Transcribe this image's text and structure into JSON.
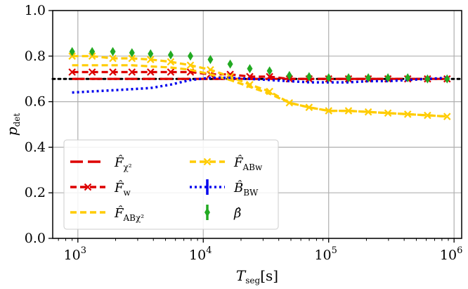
{
  "chart_data": {
    "type": "line",
    "xscale": "log",
    "xlim": [
      630,
      1150000
    ],
    "ylim": [
      0.0,
      1.0
    ],
    "xlabel": "T_seg[s]",
    "ylabel": "p_det",
    "x_ticks": [
      {
        "value": 1000,
        "base": "10",
        "exp": "3"
      },
      {
        "value": 10000,
        "base": "10",
        "exp": "4"
      },
      {
        "value": 100000,
        "base": "10",
        "exp": "5"
      },
      {
        "value": 1000000,
        "base": "10",
        "exp": "6"
      }
    ],
    "y_ticks": [
      {
        "value": 0.0,
        "label": "0.0"
      },
      {
        "value": 0.2,
        "label": "0.2"
      },
      {
        "value": 0.4,
        "label": "0.4"
      },
      {
        "value": 0.6,
        "label": "0.6"
      },
      {
        "value": 0.8,
        "label": "0.8"
      },
      {
        "value": 1.0,
        "label": "1.0"
      }
    ],
    "grid": true,
    "legend_position": "lower-left",
    "reference_line": {
      "y": 0.7,
      "style": "dotted",
      "color": "#000000"
    },
    "x": [
      900,
      1300,
      1900,
      2700,
      3800,
      5500,
      7900,
      11400,
      16400,
      23500,
      33800,
      48600,
      69800,
      100000,
      144000,
      207000,
      297000,
      427000,
      614000,
      880000
    ],
    "series": [
      {
        "name": "F_chi2",
        "legend": {
          "glyph": "F",
          "sub": "χ²"
        },
        "color": "#dd0000",
        "dash": "18,7",
        "marker": "none",
        "values": [
          0.7,
          0.7,
          0.7,
          0.7,
          0.7,
          0.7,
          0.7,
          0.7,
          0.7,
          0.7,
          0.7,
          0.7,
          0.7,
          0.7,
          0.7,
          0.7,
          0.7,
          0.7,
          0.7,
          0.7
        ]
      },
      {
        "name": "F_w",
        "legend": {
          "glyph": "F",
          "sub": "w"
        },
        "color": "#dd0000",
        "dash": "9,5",
        "marker": "x",
        "values": [
          0.73,
          0.73,
          0.73,
          0.73,
          0.73,
          0.73,
          0.73,
          0.72,
          0.72,
          0.71,
          0.71,
          0.7,
          0.7,
          0.7,
          0.7,
          0.7,
          0.7,
          0.7,
          0.7,
          0.7
        ]
      },
      {
        "name": "F_AB_chi2",
        "legend": {
          "glyph": "F",
          "sub": "ABχ²"
        },
        "color": "#ffcc00",
        "dash": "9,5",
        "marker": "none",
        "values": [
          0.76,
          0.76,
          0.76,
          0.76,
          0.755,
          0.75,
          0.74,
          0.72,
          0.695,
          0.665,
          0.635,
          0.595,
          0.575,
          0.56,
          0.56,
          0.555,
          0.55,
          0.545,
          0.54,
          0.535
        ]
      },
      {
        "name": "F_ABw",
        "legend": {
          "glyph": "F",
          "sub": "ABw"
        },
        "color": "#ffcc00",
        "dash": "9,5",
        "marker": "x",
        "values": [
          0.8,
          0.8,
          0.79,
          0.79,
          0.785,
          0.775,
          0.76,
          0.74,
          0.71,
          0.675,
          0.645,
          0.595,
          0.575,
          0.56,
          0.56,
          0.555,
          0.55,
          0.545,
          0.54,
          0.535
        ]
      },
      {
        "name": "B_BW",
        "legend": {
          "glyph": "B",
          "sub": "BW"
        },
        "color": "#0000ee",
        "dash": "3,4",
        "marker": "none",
        "values": [
          0.64,
          0.645,
          0.65,
          0.655,
          0.66,
          0.675,
          0.695,
          0.705,
          0.705,
          0.7,
          0.695,
          0.69,
          0.685,
          0.685,
          0.685,
          0.69,
          0.69,
          0.695,
          0.7,
          0.705
        ]
      },
      {
        "name": "beta",
        "legend": {
          "glyph": "β",
          "sub": ""
        },
        "color": "#22aa22",
        "dash": "none",
        "marker": "diamond",
        "values": [
          0.82,
          0.82,
          0.82,
          0.815,
          0.81,
          0.805,
          0.8,
          0.785,
          0.765,
          0.745,
          0.735,
          0.715,
          0.71,
          0.705,
          0.705,
          0.705,
          0.705,
          0.705,
          0.7,
          0.7
        ]
      }
    ]
  }
}
